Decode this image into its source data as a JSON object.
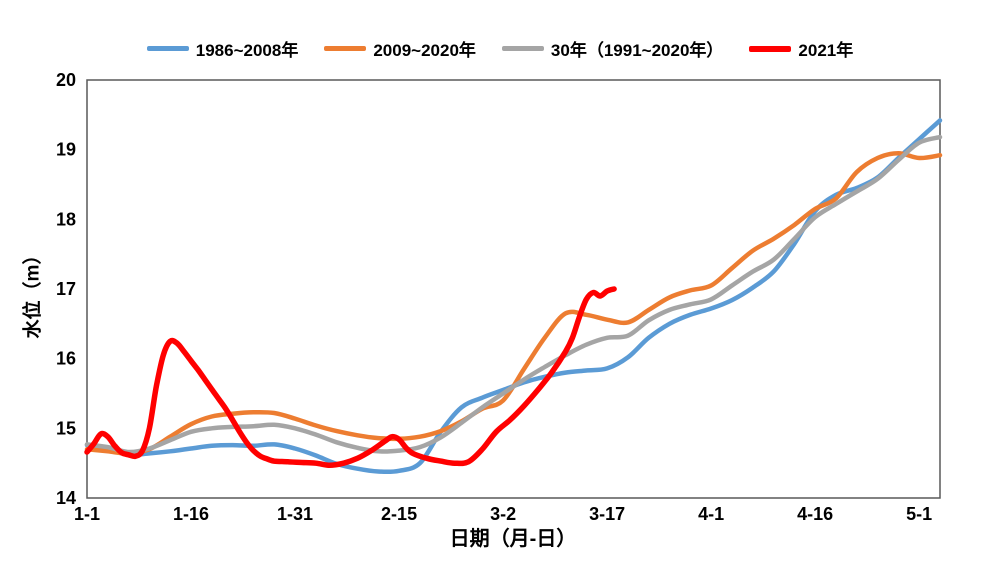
{
  "chart_data": {
    "type": "line",
    "title": "",
    "xlabel": "日期（月-日）",
    "ylabel": "水位（m）",
    "ylim": [
      14,
      20
    ],
    "xlim_days": [
      1,
      124
    ],
    "grid": false,
    "legend_position": "top",
    "background_color": "#ffffff",
    "plot_border_color": "#595959",
    "text_color": "#000000",
    "y_ticks": [
      14,
      15,
      16,
      17,
      18,
      19,
      20
    ],
    "x_ticks": {
      "days": [
        1,
        16,
        31,
        46,
        61,
        76,
        91,
        106,
        121
      ],
      "labels": [
        "1-1",
        "1-16",
        "1-31",
        "2-15",
        "3-2",
        "3-17",
        "4-1",
        "4-16",
        "5-1"
      ]
    },
    "series": [
      {
        "name": "1986~2008年",
        "color": "#5B9BD5",
        "line_width": 4.5,
        "x_days": [
          1,
          4,
          7,
          10,
          13,
          16,
          19,
          22,
          25,
          28,
          31,
          34,
          37,
          40,
          43,
          46,
          49,
          52,
          55,
          58,
          61,
          64,
          67,
          70,
          73,
          76,
          79,
          82,
          85,
          88,
          91,
          94,
          97,
          100,
          103,
          106,
          109,
          112,
          115,
          118,
          121,
          124
        ],
        "values": [
          14.76,
          14.7,
          14.62,
          14.64,
          14.67,
          14.71,
          14.75,
          14.76,
          14.75,
          14.77,
          14.71,
          14.61,
          14.49,
          14.42,
          14.38,
          14.39,
          14.5,
          14.95,
          15.3,
          15.44,
          15.55,
          15.66,
          15.74,
          15.8,
          15.83,
          15.86,
          16.02,
          16.3,
          16.5,
          16.63,
          16.72,
          16.84,
          17.02,
          17.25,
          17.65,
          18.12,
          18.35,
          18.45,
          18.6,
          18.88,
          19.15,
          19.42
        ]
      },
      {
        "name": "2009~2020年",
        "color": "#ED7D31",
        "line_width": 4.5,
        "x_days": [
          1,
          4,
          7,
          10,
          13,
          16,
          19,
          22,
          25,
          28,
          31,
          34,
          37,
          40,
          43,
          46,
          49,
          52,
          55,
          58,
          61,
          64,
          67,
          70,
          73,
          76,
          79,
          82,
          85,
          88,
          91,
          94,
          97,
          100,
          103,
          106,
          109,
          112,
          115,
          118,
          121,
          124
        ],
        "values": [
          14.7,
          14.67,
          14.64,
          14.7,
          14.88,
          15.06,
          15.17,
          15.21,
          15.23,
          15.22,
          15.14,
          15.04,
          14.96,
          14.9,
          14.86,
          14.85,
          14.88,
          14.96,
          15.1,
          15.28,
          15.4,
          15.85,
          16.3,
          16.65,
          16.63,
          16.56,
          16.52,
          16.7,
          16.88,
          16.98,
          17.05,
          17.3,
          17.55,
          17.72,
          17.92,
          18.15,
          18.3,
          18.68,
          18.88,
          18.95,
          18.88,
          18.92
        ]
      },
      {
        "name": "30年（1991~2020年）",
        "color": "#A5A5A5",
        "line_width": 4.5,
        "x_days": [
          1,
          4,
          7,
          10,
          13,
          16,
          19,
          22,
          25,
          28,
          31,
          34,
          37,
          40,
          43,
          46,
          49,
          52,
          55,
          58,
          61,
          64,
          67,
          70,
          73,
          76,
          79,
          82,
          85,
          88,
          91,
          94,
          97,
          100,
          103,
          106,
          109,
          112,
          115,
          118,
          121,
          124
        ],
        "values": [
          14.77,
          14.73,
          14.66,
          14.71,
          14.83,
          14.95,
          15.0,
          15.02,
          15.03,
          15.05,
          15.0,
          14.91,
          14.8,
          14.72,
          14.67,
          14.68,
          14.73,
          14.87,
          15.08,
          15.3,
          15.5,
          15.7,
          15.88,
          16.05,
          16.2,
          16.3,
          16.33,
          16.55,
          16.7,
          16.78,
          16.85,
          17.05,
          17.25,
          17.42,
          17.72,
          18.03,
          18.22,
          18.4,
          18.58,
          18.85,
          19.1,
          19.18
        ]
      },
      {
        "name": "2021年",
        "color": "#FF0000",
        "line_width": 5.5,
        "x_days": [
          1,
          2,
          3,
          4,
          5,
          6,
          7,
          8,
          9,
          10,
          11,
          12,
          13,
          14,
          15,
          16,
          17,
          18,
          19,
          20,
          21,
          22,
          23,
          24,
          25,
          26,
          27,
          28,
          30,
          32,
          34,
          36,
          38,
          40,
          42,
          44,
          45,
          46,
          47,
          48,
          50,
          52,
          54,
          56,
          58,
          60,
          62,
          64,
          66,
          68,
          70,
          71,
          72,
          73,
          74,
          75,
          76,
          77
        ],
        "values": [
          14.66,
          14.78,
          14.92,
          14.88,
          14.75,
          14.65,
          14.62,
          14.6,
          14.68,
          15.0,
          15.6,
          16.05,
          16.25,
          16.22,
          16.1,
          15.97,
          15.84,
          15.7,
          15.56,
          15.42,
          15.28,
          15.12,
          14.95,
          14.8,
          14.68,
          14.6,
          14.56,
          14.53,
          14.52,
          14.51,
          14.5,
          14.47,
          14.5,
          14.57,
          14.68,
          14.82,
          14.88,
          14.84,
          14.72,
          14.64,
          14.57,
          14.53,
          14.5,
          14.52,
          14.7,
          14.95,
          15.12,
          15.32,
          15.55,
          15.8,
          16.1,
          16.3,
          16.6,
          16.85,
          16.95,
          16.9,
          16.97,
          17.0
        ]
      }
    ]
  }
}
